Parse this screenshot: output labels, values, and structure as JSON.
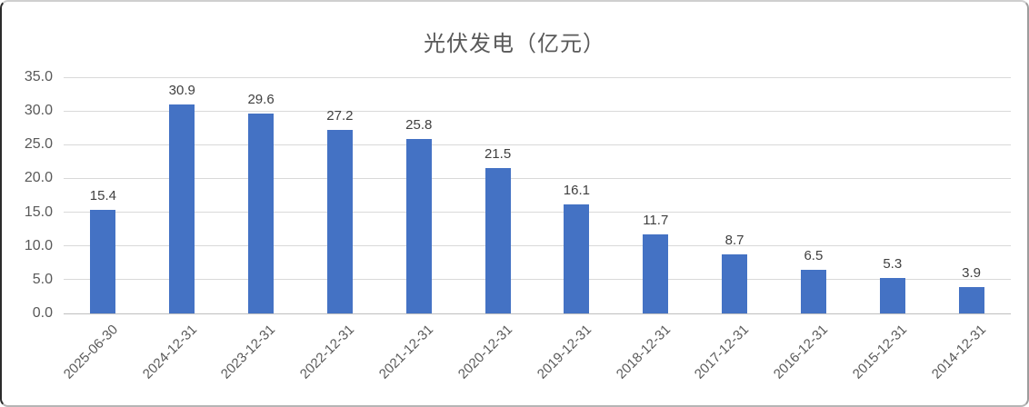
{
  "chart_data": {
    "type": "bar",
    "title": "光伏发电（亿元）",
    "categories": [
      "2025-06-30",
      "2024-12-31",
      "2023-12-31",
      "2022-12-31",
      "2021-12-31",
      "2020-12-31",
      "2019-12-31",
      "2018-12-31",
      "2017-12-31",
      "2016-12-31",
      "2015-12-31",
      "2014-12-31"
    ],
    "values": [
      15.4,
      30.9,
      29.6,
      27.2,
      25.8,
      21.5,
      16.1,
      11.7,
      8.7,
      6.5,
      5.3,
      3.9
    ],
    "data_labels": [
      15.4,
      30.9,
      29.6,
      27.2,
      25.8,
      21.5,
      16.1,
      11.7,
      8.7,
      6.5,
      5.3,
      3.9
    ],
    "xlabel": "",
    "ylabel": "",
    "ylim": [
      0,
      35
    ],
    "ytick_step": 5,
    "ytick_labels": [
      "0.0",
      "5.0",
      "10.0",
      "15.0",
      "20.0",
      "25.0",
      "30.0",
      "35.0"
    ],
    "grid": true,
    "legend_position": "none",
    "style": {
      "bar_color": "#4472c4",
      "gridline_color": "#d9d9d9",
      "axis_line_color": "#bfbfbf",
      "title_color": "#595959",
      "tick_label_color": "#595959",
      "data_label_color": "#404040"
    }
  }
}
